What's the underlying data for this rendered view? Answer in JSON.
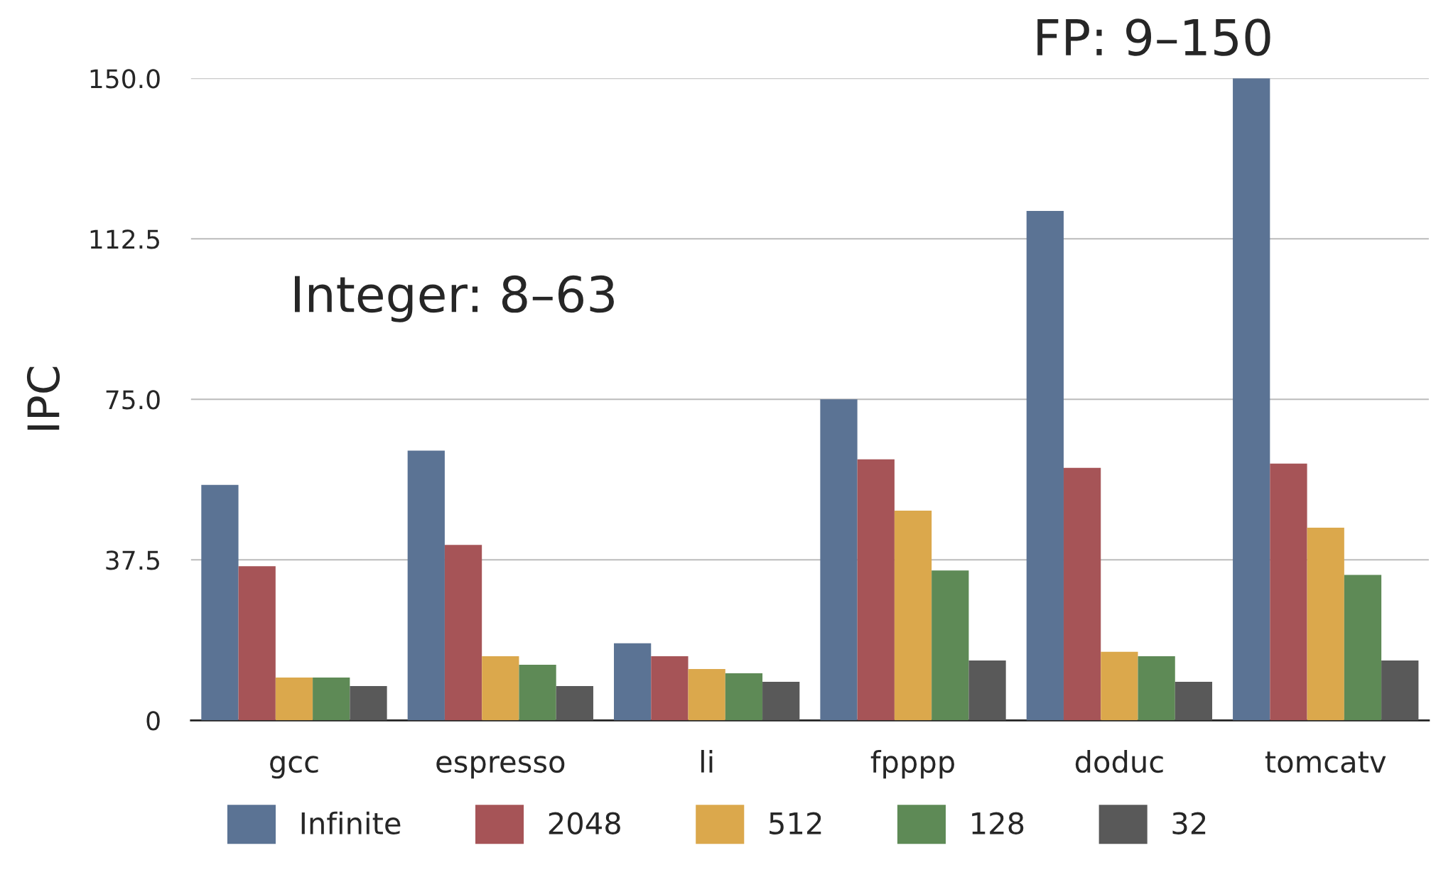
{
  "chart_data": {
    "type": "bar",
    "ylabel": "IPC",
    "categories": [
      "gcc",
      "espresso",
      "li",
      "fpppp",
      "doduc",
      "tomcatv"
    ],
    "series": [
      {
        "name": "Infinite",
        "color": "#5b7394",
        "values": [
          55,
          63,
          18,
          75,
          119,
          150
        ]
      },
      {
        "name": "2048",
        "color": "#a65457",
        "values": [
          36,
          41,
          15,
          61,
          59,
          60
        ]
      },
      {
        "name": "512",
        "color": "#dba84c",
        "values": [
          10,
          15,
          12,
          49,
          16,
          45
        ]
      },
      {
        "name": "128",
        "color": "#5e8a56",
        "values": [
          10,
          13,
          11,
          35,
          15,
          34
        ]
      },
      {
        "name": "32",
        "color": "#595959",
        "values": [
          8,
          8,
          9,
          14,
          9,
          14
        ]
      }
    ],
    "ylim": [
      0,
      150
    ],
    "yticks": [
      0,
      {
        "value": 37.5,
        "label": "37.5"
      },
      {
        "value": 75,
        "label": "75.0"
      },
      {
        "value": 112.5,
        "label": "112.5"
      },
      {
        "value": 150,
        "label": "150.0"
      }
    ],
    "grid": "y",
    "legend": "bottom",
    "annotations": [
      "Integer: 8–63",
      "FP: 9–150"
    ]
  }
}
